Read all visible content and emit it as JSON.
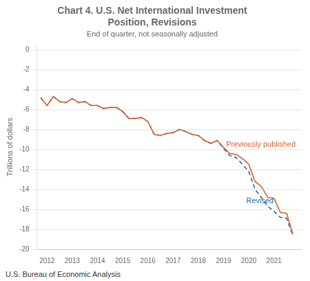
{
  "chart_data": {
    "type": "line",
    "title": "Chart 4. U.S. Net International Investment\nPosition, Revisions",
    "subtitle": "End of quarter, not seasonally adjusted",
    "ylabel": "Trillions of dollars",
    "footer": "U.S. Bureau of Economic Analysis",
    "x": [
      2011.75,
      2012.0,
      2012.25,
      2012.5,
      2012.75,
      2013.0,
      2013.25,
      2013.5,
      2013.75,
      2014.0,
      2014.25,
      2014.5,
      2014.75,
      2015.0,
      2015.25,
      2015.5,
      2015.75,
      2016.0,
      2016.25,
      2016.5,
      2016.75,
      2017.0,
      2017.25,
      2017.5,
      2017.75,
      2018.0,
      2018.25,
      2018.5,
      2018.75,
      2019.0,
      2019.25,
      2019.5,
      2019.75,
      2020.0,
      2020.25,
      2020.5,
      2020.75,
      2021.0,
      2021.25,
      2021.5,
      2021.75
    ],
    "series": [
      {
        "name": "Previously published",
        "color": "#d4622a",
        "line_style": "solid",
        "values": [
          -4.8,
          -5.6,
          -4.7,
          -5.2,
          -5.3,
          -4.9,
          -5.3,
          -5.2,
          -5.6,
          -5.6,
          -5.9,
          -5.8,
          -5.8,
          -6.2,
          -6.9,
          -6.9,
          -6.8,
          -7.2,
          -8.5,
          -8.6,
          -8.4,
          -8.3,
          -8.0,
          -8.2,
          -8.5,
          -8.6,
          -9.1,
          -9.4,
          -9.1,
          -9.8,
          -10.4,
          -10.5,
          -10.9,
          -11.5,
          -13.2,
          -13.7,
          -14.8,
          -14.9,
          -16.3,
          -16.4,
          -18.5
        ]
      },
      {
        "name": "Revised",
        "color": "#2066a8",
        "line_style": "dashed",
        "values": [
          -4.8,
          -5.6,
          -4.7,
          -5.2,
          -5.3,
          -4.9,
          -5.3,
          -5.2,
          -5.6,
          -5.6,
          -5.9,
          -5.8,
          -5.8,
          -6.2,
          -6.9,
          -6.9,
          -6.8,
          -7.2,
          -8.5,
          -8.6,
          -8.4,
          -8.3,
          -8.0,
          -8.2,
          -8.5,
          -8.6,
          -9.1,
          -9.4,
          -9.1,
          -9.9,
          -10.6,
          -10.8,
          -11.5,
          -12.2,
          -14.0,
          -14.8,
          -15.7,
          -16.2,
          -16.8,
          -16.9,
          -18.6
        ]
      }
    ],
    "annotations": [
      {
        "text": "Previously published",
        "x": 2019.1,
        "y": -9.7,
        "color": "#d4622a"
      },
      {
        "text": "Revised",
        "x": 2019.9,
        "y": -15.4,
        "color": "#2066a8"
      }
    ],
    "xlim": [
      2011.6,
      2022.1
    ],
    "xticks": [
      2012,
      2013,
      2014,
      2015,
      2016,
      2017,
      2018,
      2019,
      2020,
      2021
    ],
    "ylim": [
      -20,
      0.5
    ],
    "yticks": [
      0,
      -2,
      -4,
      -6,
      -8,
      -10,
      -12,
      -14,
      -16,
      -18,
      -20
    ],
    "grid": true
  }
}
